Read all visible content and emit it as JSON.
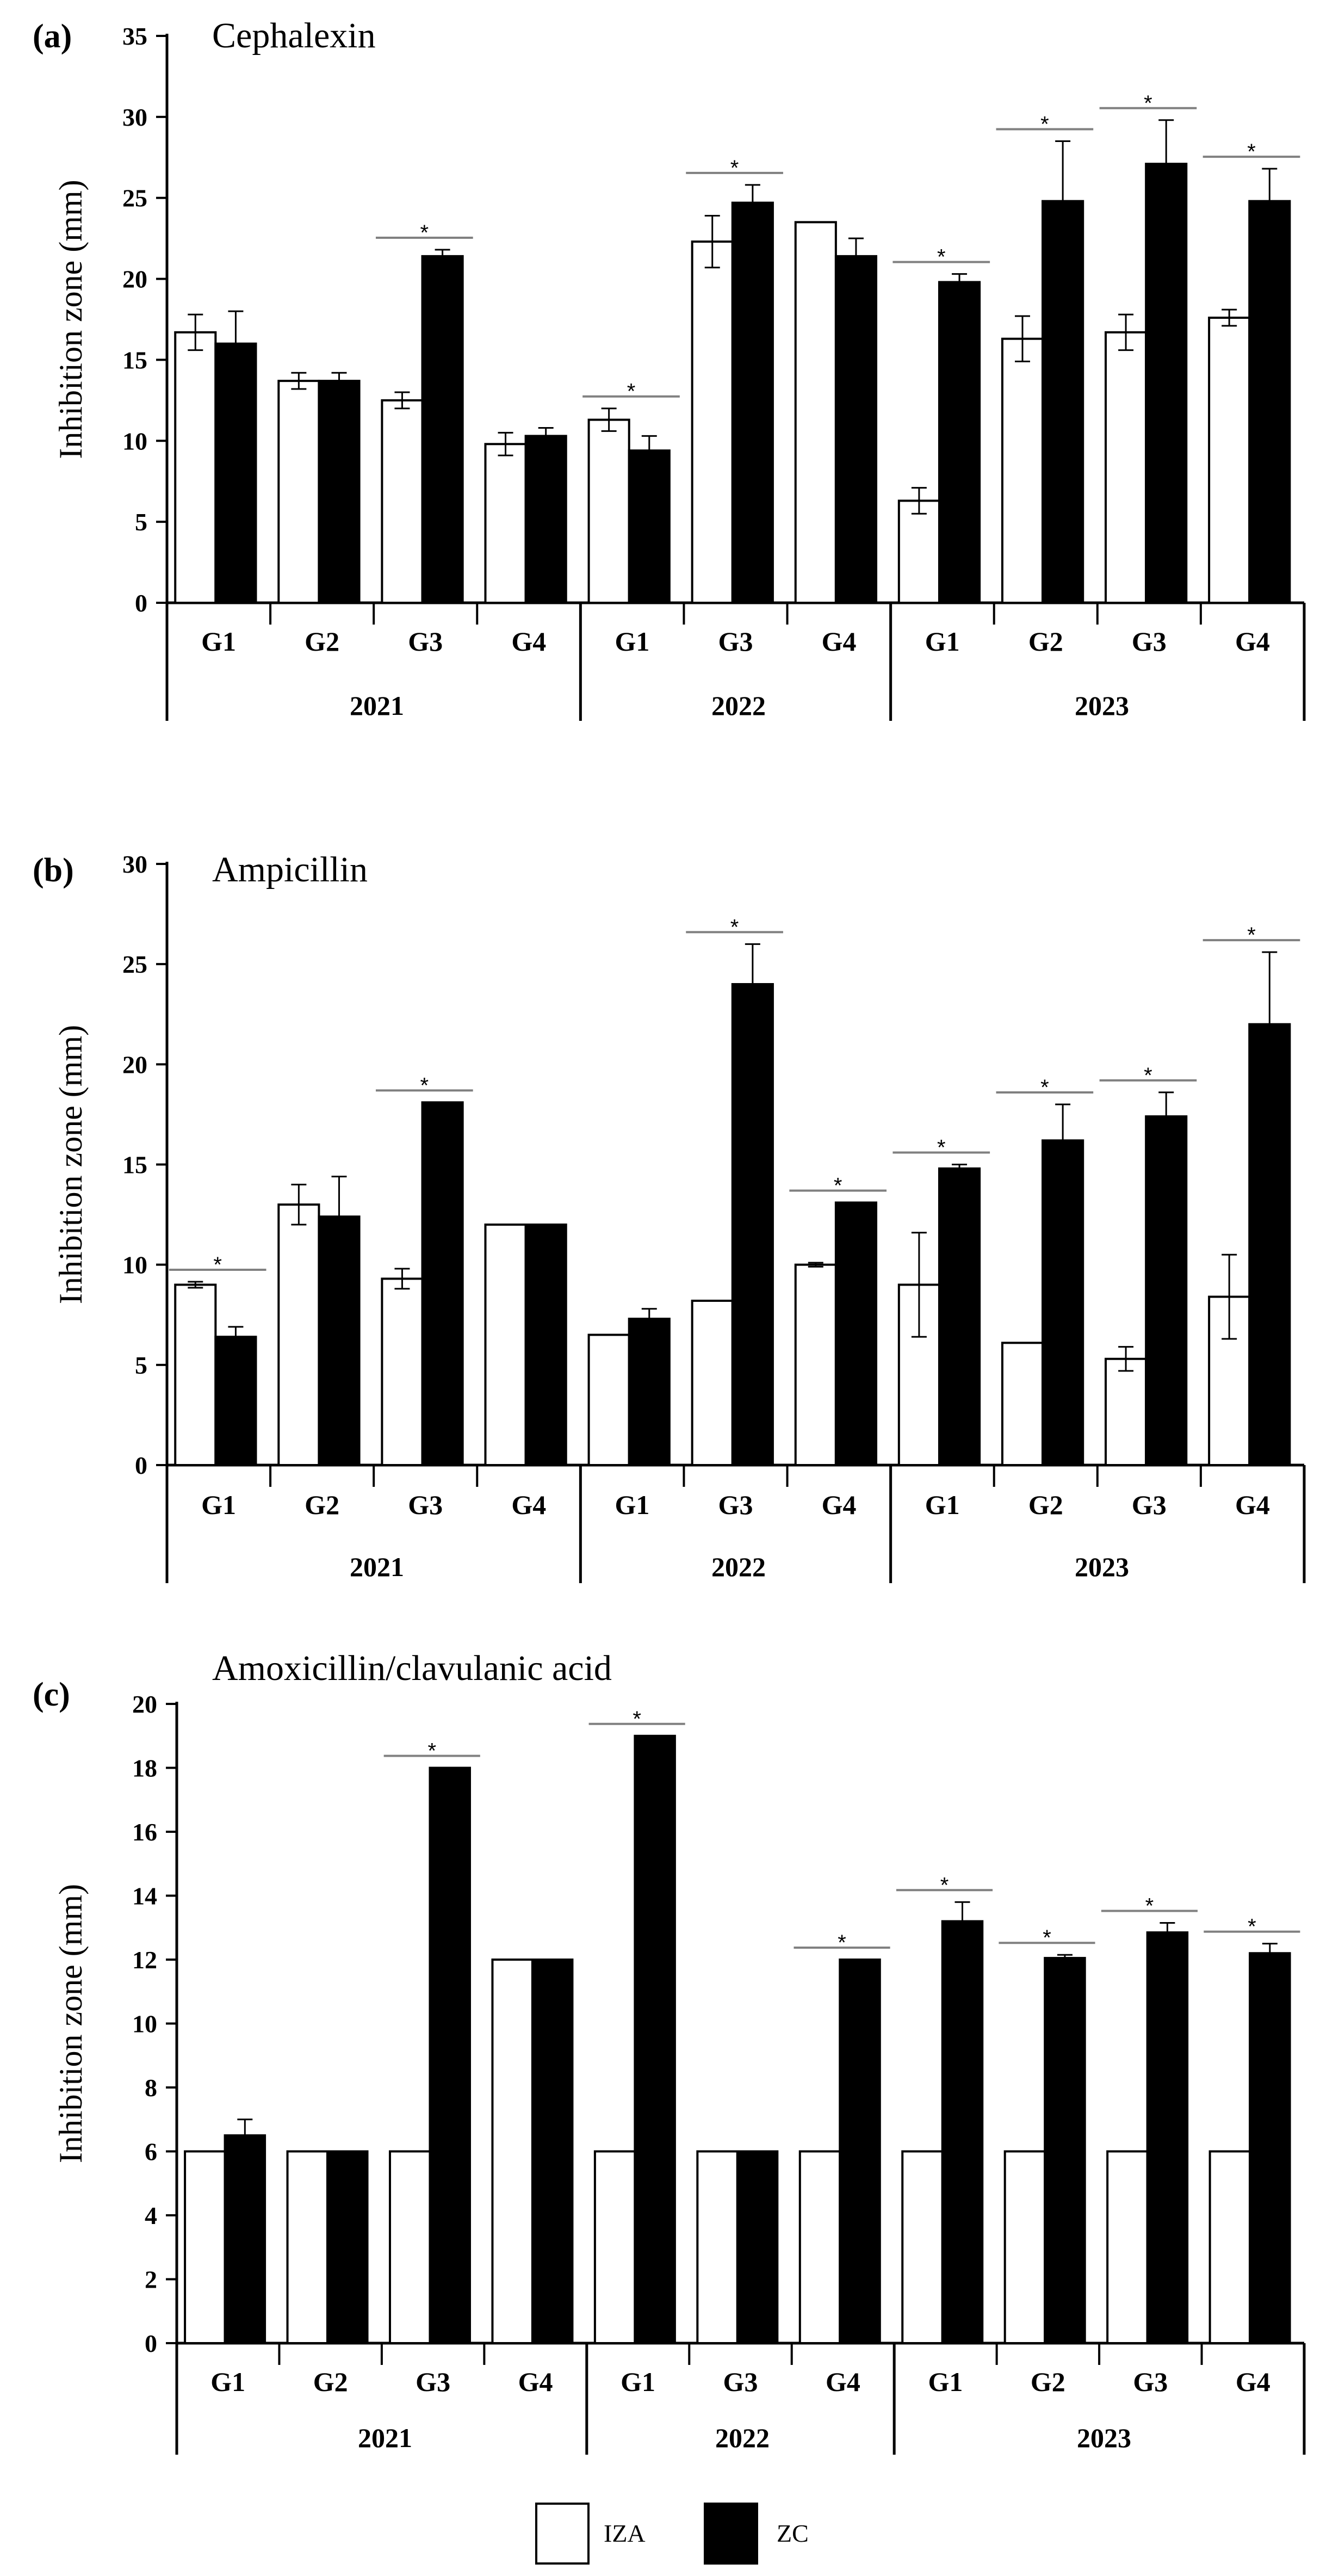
{
  "legend": {
    "iza": "IZA",
    "zc": "ZC"
  },
  "colors": {
    "iza_fill": "#ffffff",
    "zc_fill": "#000000",
    "stroke": "#000000",
    "sig_line": "#808080"
  },
  "chart_data": [
    {
      "type": "bar",
      "panel": "(a)",
      "title": "Cephalexin",
      "ylabel": "Inhibition zone (mm)",
      "ylim": [
        0,
        35
      ],
      "yticks": [
        0,
        5,
        10,
        15,
        20,
        25,
        30,
        35
      ],
      "groups": [
        {
          "year": "2021",
          "categories": [
            "G1",
            "G2",
            "G3",
            "G4"
          ]
        },
        {
          "year": "2022",
          "categories": [
            "G1",
            "G3",
            "G4"
          ]
        },
        {
          "year": "2023",
          "categories": [
            "G1",
            "G2",
            "G3",
            "G4"
          ]
        }
      ],
      "series": [
        {
          "name": "IZA",
          "values": [
            16.7,
            13.7,
            12.5,
            9.8,
            11.3,
            22.3,
            23.5,
            6.3,
            16.3,
            16.7,
            17.6
          ],
          "errors": [
            1.1,
            0.5,
            0.5,
            0.7,
            0.7,
            1.6,
            0,
            0.8,
            1.4,
            1.1,
            0.5
          ]
        },
        {
          "name": "ZC",
          "values": [
            16,
            13.7,
            21.4,
            10.3,
            9.4,
            24.7,
            21.4,
            19.8,
            24.8,
            27.1,
            24.8
          ],
          "errors": [
            2.0,
            0.5,
            0.4,
            0.5,
            0.9,
            1.1,
            1.1,
            0.5,
            3.7,
            2.7,
            2.0
          ]
        }
      ],
      "significant": [
        false,
        false,
        true,
        false,
        true,
        true,
        false,
        true,
        true,
        true,
        true
      ],
      "sig_marker": "*"
    },
    {
      "type": "bar",
      "panel": "(b)",
      "title": "Ampicillin",
      "ylabel": "Inhibition zone (mm)",
      "ylim": [
        0,
        30
      ],
      "yticks": [
        0,
        5,
        10,
        15,
        20,
        25,
        30
      ],
      "groups": [
        {
          "year": "2021",
          "categories": [
            "G1",
            "G2",
            "G3",
            "G4"
          ]
        },
        {
          "year": "2022",
          "categories": [
            "G1",
            "G3",
            "G4"
          ]
        },
        {
          "year": "2023",
          "categories": [
            "G1",
            "G2",
            "G3",
            "G4"
          ]
        }
      ],
      "series": [
        {
          "name": "IZA",
          "values": [
            9,
            13,
            9.3,
            12,
            6.5,
            8.2,
            10,
            9,
            6.1,
            5.3,
            8.4
          ],
          "errors": [
            0.15,
            1.0,
            0.5,
            0,
            0,
            0,
            0.1,
            2.6,
            0,
            0.6,
            2.1
          ]
        },
        {
          "name": "ZC",
          "values": [
            6.4,
            12.4,
            18.1,
            12,
            7.3,
            24,
            13.1,
            14.8,
            16.2,
            17.4,
            22
          ],
          "errors": [
            0.5,
            2.0,
            0,
            0,
            0.5,
            2.0,
            0,
            0.2,
            1.8,
            1.2,
            3.6
          ]
        }
      ],
      "significant": [
        true,
        false,
        true,
        false,
        false,
        true,
        true,
        true,
        true,
        true,
        true
      ],
      "sig_marker": "*"
    },
    {
      "type": "bar",
      "panel": "(c)",
      "title": "Amoxicillin/clavulanic acid",
      "ylabel": "Inhibition zone (mm)",
      "ylim": [
        0,
        20
      ],
      "yticks": [
        0,
        2,
        4,
        6,
        8,
        10,
        12,
        14,
        16,
        18,
        20
      ],
      "groups": [
        {
          "year": "2021",
          "categories": [
            "G1",
            "G2",
            "G3",
            "G4"
          ]
        },
        {
          "year": "2022",
          "categories": [
            "G1",
            "G3",
            "G4"
          ]
        },
        {
          "year": "2023",
          "categories": [
            "G1",
            "G2",
            "G3",
            "G4"
          ]
        }
      ],
      "series": [
        {
          "name": "IZA",
          "values": [
            6,
            6,
            6,
            12,
            6,
            6,
            6,
            6,
            6,
            6,
            6
          ],
          "errors": [
            0,
            0,
            0,
            0,
            0,
            0,
            0,
            0,
            0,
            0,
            0
          ]
        },
        {
          "name": "ZC",
          "values": [
            6.5,
            6,
            18,
            12,
            19,
            6,
            12,
            13.2,
            12.05,
            12.85,
            12.2
          ],
          "errors": [
            0.5,
            0,
            0,
            0,
            0,
            0,
            0,
            0.6,
            0.1,
            0.3,
            0.3
          ]
        }
      ],
      "significant": [
        false,
        false,
        true,
        false,
        true,
        false,
        true,
        true,
        true,
        true,
        true
      ],
      "sig_marker": "*"
    }
  ]
}
